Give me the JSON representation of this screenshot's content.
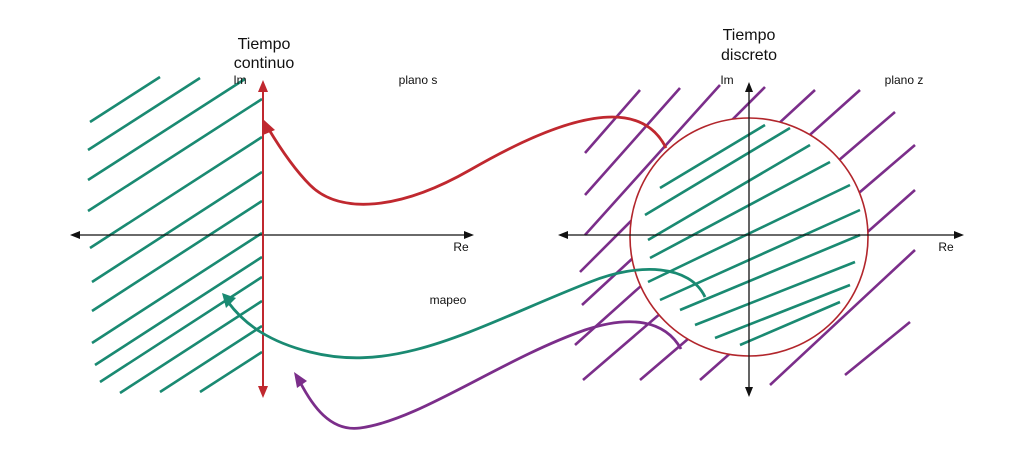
{
  "labels": {
    "continuous_title_line1": "Tiempo",
    "continuous_title_line2": "continuo",
    "discrete_title_line1": "Tiempo",
    "discrete_title_line2": "discreto",
    "s_plane": "plano s",
    "z_plane": "plano z",
    "im_left": "Im",
    "im_right": "Im",
    "re_left": "Re",
    "re_right": "Re",
    "mapping": "mapeo"
  },
  "colors": {
    "axis": "#111111",
    "red": "#c0282f",
    "teal": "#1a8a72",
    "purple": "#7b2e8a",
    "circle": "#b2262c"
  }
}
